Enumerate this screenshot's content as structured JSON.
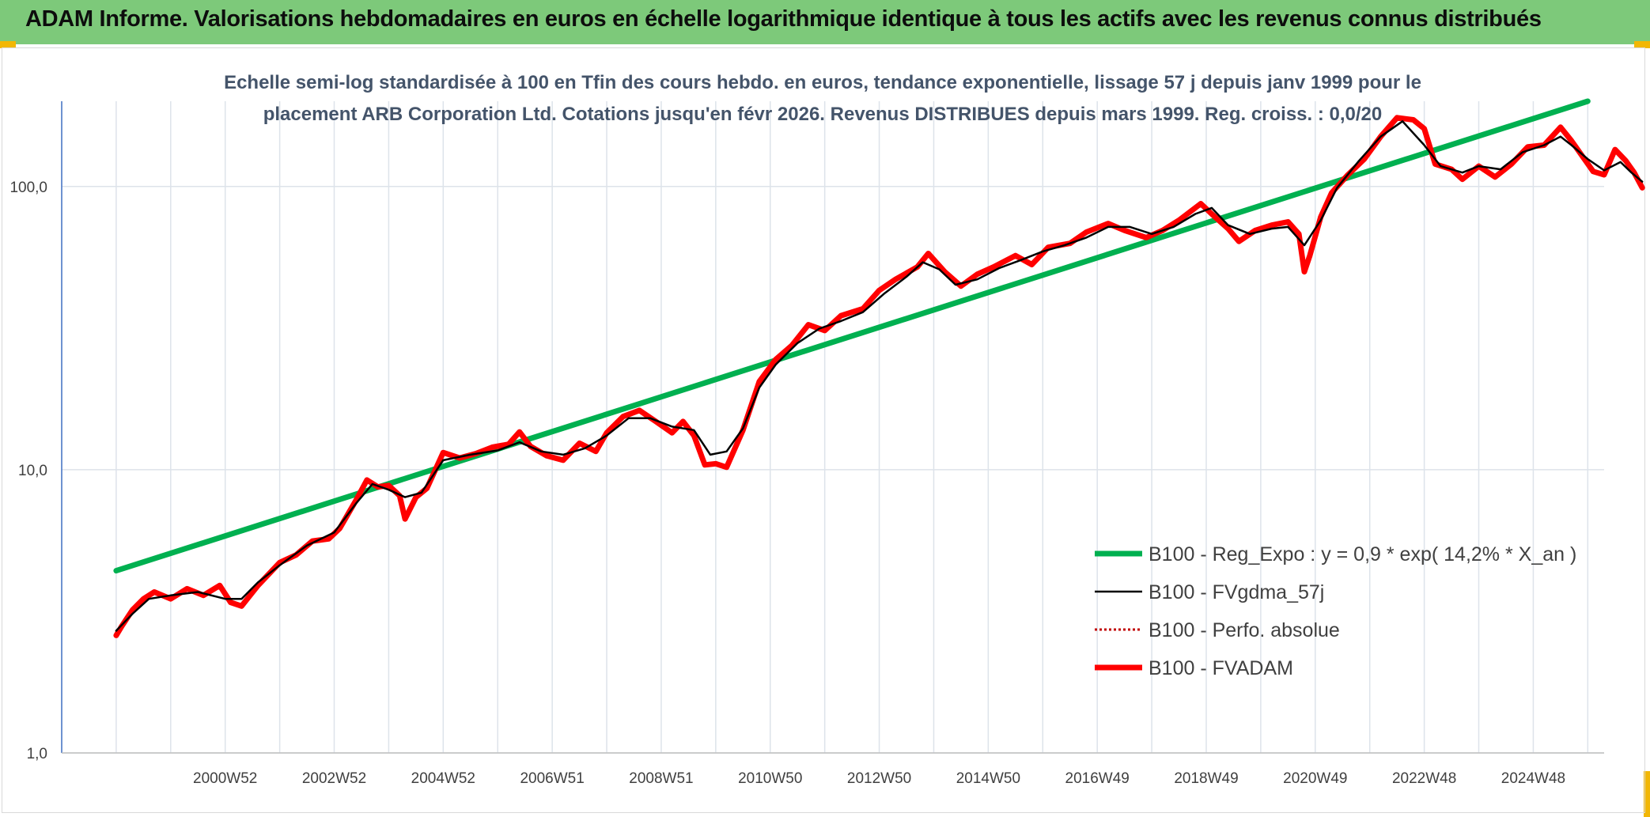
{
  "header": {
    "title": "ADAM Informe. Valorisations hebdomadaires en euros en échelle logarithmique identique à tous les actifs avec les revenus connus distribués"
  },
  "colors": {
    "header_bg": "#7dc97a",
    "regression": "#00b050",
    "smoothed": "#000000",
    "fvadam": "#ff0000",
    "perfo": "#c00000"
  },
  "chart_data": {
    "type": "line",
    "subtitle_lines": [
      "Echelle semi-log standardisée à 100 en Tfin des cours hebdo. en euros, tendance exponentielle, lissage 57 j depuis janv 1999 pour le",
      "placement ARB Corporation Ltd. Cotations jusqu'en févr 2026. Revenus DISTRIBUES depuis mars 1999. Reg. croiss. : 0,0/20"
    ],
    "y_scale": "log",
    "ylim": [
      1,
      200
    ],
    "y_ticks": [
      {
        "value": 1,
        "label": "1,0"
      },
      {
        "value": 10,
        "label": "10,0"
      },
      {
        "value": 100,
        "label": "100,0"
      }
    ],
    "xlim": [
      1998.0,
      2026.3
    ],
    "x_ticks": [
      {
        "value": 2001.0,
        "label": "2000W52"
      },
      {
        "value": 2003.0,
        "label": "2002W52"
      },
      {
        "value": 2005.0,
        "label": "2004W52"
      },
      {
        "value": 2007.0,
        "label": "2006W51"
      },
      {
        "value": 2009.0,
        "label": "2008W51"
      },
      {
        "value": 2011.0,
        "label": "2010W50"
      },
      {
        "value": 2013.0,
        "label": "2012W50"
      },
      {
        "value": 2015.0,
        "label": "2014W50"
      },
      {
        "value": 2017.0,
        "label": "2016W49"
      },
      {
        "value": 2019.0,
        "label": "2018W49"
      },
      {
        "value": 2021.0,
        "label": "2020W49"
      },
      {
        "value": 2023.0,
        "label": "2022W48"
      },
      {
        "value": 2025.0,
        "label": "2024W48"
      }
    ],
    "grid": true,
    "legend_position": "bottom-right",
    "series": [
      {
        "name": "B100 - Reg_Expo : y = 0,9 * exp( 14,2% *  X_an )",
        "color": "#00b050",
        "style": "solid-thick",
        "points": [
          [
            1999.0,
            4.4
          ],
          [
            2026.0,
            200
          ]
        ]
      },
      {
        "name": "B100 - FVgdma_57j",
        "color": "#000000",
        "style": "solid-thin",
        "points": [
          [
            1999.0,
            2.7
          ],
          [
            1999.3,
            3.1
          ],
          [
            1999.6,
            3.5
          ],
          [
            2000.0,
            3.6
          ],
          [
            2000.5,
            3.7
          ],
          [
            2001.0,
            3.5
          ],
          [
            2001.3,
            3.5
          ],
          [
            2001.6,
            4.0
          ],
          [
            2002.0,
            4.6
          ],
          [
            2002.5,
            5.4
          ],
          [
            2003.0,
            6.0
          ],
          [
            2003.4,
            7.6
          ],
          [
            2003.7,
            8.9
          ],
          [
            2004.0,
            8.5
          ],
          [
            2004.3,
            8.0
          ],
          [
            2004.6,
            8.3
          ],
          [
            2005.0,
            10.8
          ],
          [
            2005.5,
            11.3
          ],
          [
            2006.0,
            11.7
          ],
          [
            2006.4,
            12.5
          ],
          [
            2006.8,
            11.6
          ],
          [
            2007.2,
            11.3
          ],
          [
            2007.6,
            11.9
          ],
          [
            2008.0,
            13.2
          ],
          [
            2008.4,
            15.2
          ],
          [
            2008.8,
            15.2
          ],
          [
            2009.2,
            14.2
          ],
          [
            2009.6,
            13.8
          ],
          [
            2009.9,
            11.3
          ],
          [
            2010.2,
            11.6
          ],
          [
            2010.5,
            14.0
          ],
          [
            2010.8,
            19.5
          ],
          [
            2011.1,
            23.5
          ],
          [
            2011.5,
            28.0
          ],
          [
            2011.9,
            31.5
          ],
          [
            2012.3,
            33.5
          ],
          [
            2012.7,
            36.0
          ],
          [
            2013.1,
            42.0
          ],
          [
            2013.5,
            48.0
          ],
          [
            2013.8,
            54.0
          ],
          [
            2014.1,
            51.0
          ],
          [
            2014.4,
            45.0
          ],
          [
            2014.8,
            47.0
          ],
          [
            2015.2,
            51.5
          ],
          [
            2015.6,
            55.0
          ],
          [
            2016.0,
            59.0
          ],
          [
            2016.4,
            62.0
          ],
          [
            2016.8,
            66.0
          ],
          [
            2017.2,
            72.0
          ],
          [
            2017.6,
            72.0
          ],
          [
            2018.0,
            68.0
          ],
          [
            2018.4,
            72.0
          ],
          [
            2018.8,
            80.0
          ],
          [
            2019.1,
            84.0
          ],
          [
            2019.4,
            73.0
          ],
          [
            2019.8,
            68.0
          ],
          [
            2020.2,
            71.0
          ],
          [
            2020.5,
            72.0
          ],
          [
            2020.8,
            62.0
          ],
          [
            2021.1,
            76.0
          ],
          [
            2021.4,
            99.0
          ],
          [
            2021.8,
            123.0
          ],
          [
            2022.2,
            150.0
          ],
          [
            2022.6,
            170.0
          ],
          [
            2023.0,
            140.0
          ],
          [
            2023.3,
            118.0
          ],
          [
            2023.7,
            112.0
          ],
          [
            2024.0,
            118.0
          ],
          [
            2024.4,
            115.0
          ],
          [
            2024.8,
            132.0
          ],
          [
            2025.2,
            140.0
          ],
          [
            2025.5,
            150.0
          ],
          [
            2025.7,
            140.0
          ],
          [
            2026.0,
            125.0
          ],
          [
            2026.3,
            114.0
          ],
          [
            2026.6,
            122.0
          ],
          [
            2026.8,
            112.0
          ],
          [
            2027.0,
            104.0
          ]
        ]
      },
      {
        "name": "B100 - Perfo. absolue",
        "color": "#c00000",
        "style": "dotted",
        "points": []
      },
      {
        "name": "B100 - FVADAM",
        "color": "#ff0000",
        "style": "solid-thick",
        "points": [
          [
            1999.0,
            2.6
          ],
          [
            1999.1,
            2.8
          ],
          [
            1999.3,
            3.2
          ],
          [
            1999.5,
            3.5
          ],
          [
            1999.7,
            3.7
          ],
          [
            2000.0,
            3.5
          ],
          [
            2000.3,
            3.8
          ],
          [
            2000.6,
            3.6
          ],
          [
            2000.9,
            3.9
          ],
          [
            2001.1,
            3.4
          ],
          [
            2001.3,
            3.3
          ],
          [
            2001.6,
            3.9
          ],
          [
            2002.0,
            4.7
          ],
          [
            2002.3,
            5.0
          ],
          [
            2002.6,
            5.6
          ],
          [
            2002.9,
            5.7
          ],
          [
            2003.1,
            6.2
          ],
          [
            2003.4,
            7.8
          ],
          [
            2003.6,
            9.2
          ],
          [
            2003.8,
            8.7
          ],
          [
            2004.0,
            8.8
          ],
          [
            2004.2,
            8.1
          ],
          [
            2004.3,
            6.7
          ],
          [
            2004.5,
            8.0
          ],
          [
            2004.7,
            8.6
          ],
          [
            2005.0,
            11.5
          ],
          [
            2005.3,
            11.0
          ],
          [
            2005.6,
            11.4
          ],
          [
            2005.9,
            12.0
          ],
          [
            2006.2,
            12.3
          ],
          [
            2006.4,
            13.6
          ],
          [
            2006.6,
            12.1
          ],
          [
            2006.9,
            11.2
          ],
          [
            2007.2,
            10.8
          ],
          [
            2007.5,
            12.4
          ],
          [
            2007.8,
            11.6
          ],
          [
            2008.0,
            13.5
          ],
          [
            2008.3,
            15.4
          ],
          [
            2008.6,
            16.2
          ],
          [
            2008.9,
            14.8
          ],
          [
            2009.2,
            13.5
          ],
          [
            2009.4,
            14.8
          ],
          [
            2009.6,
            13.2
          ],
          [
            2009.8,
            10.4
          ],
          [
            2010.0,
            10.5
          ],
          [
            2010.2,
            10.2
          ],
          [
            2010.5,
            13.8
          ],
          [
            2010.8,
            20.5
          ],
          [
            2011.1,
            24.5
          ],
          [
            2011.4,
            27.5
          ],
          [
            2011.7,
            32.5
          ],
          [
            2012.0,
            31.0
          ],
          [
            2012.3,
            35.0
          ],
          [
            2012.7,
            37.0
          ],
          [
            2013.0,
            43.0
          ],
          [
            2013.3,
            47.0
          ],
          [
            2013.7,
            52.0
          ],
          [
            2013.9,
            58.0
          ],
          [
            2014.2,
            50.0
          ],
          [
            2014.5,
            44.5
          ],
          [
            2014.8,
            49.0
          ],
          [
            2015.1,
            52.0
          ],
          [
            2015.5,
            57.0
          ],
          [
            2015.8,
            53.0
          ],
          [
            2016.1,
            61.0
          ],
          [
            2016.5,
            63.0
          ],
          [
            2016.8,
            69.0
          ],
          [
            2017.2,
            74.0
          ],
          [
            2017.5,
            70.0
          ],
          [
            2017.9,
            66.0
          ],
          [
            2018.2,
            70.0
          ],
          [
            2018.5,
            76.0
          ],
          [
            2018.9,
            87.0
          ],
          [
            2019.1,
            80.0
          ],
          [
            2019.4,
            71.0
          ],
          [
            2019.6,
            64.0
          ],
          [
            2019.9,
            70.0
          ],
          [
            2020.2,
            73.0
          ],
          [
            2020.5,
            75.0
          ],
          [
            2020.7,
            68.0
          ],
          [
            2020.8,
            50.0
          ],
          [
            2020.9,
            57.0
          ],
          [
            2021.1,
            78.0
          ],
          [
            2021.3,
            95.0
          ],
          [
            2021.6,
            110.0
          ],
          [
            2021.9,
            125.0
          ],
          [
            2022.2,
            150.0
          ],
          [
            2022.5,
            175.0
          ],
          [
            2022.8,
            172.0
          ],
          [
            2023.0,
            160.0
          ],
          [
            2023.2,
            120.0
          ],
          [
            2023.5,
            115.0
          ],
          [
            2023.7,
            106.0
          ],
          [
            2024.0,
            118.0
          ],
          [
            2024.3,
            108.0
          ],
          [
            2024.6,
            120.0
          ],
          [
            2024.9,
            138.0
          ],
          [
            2025.2,
            140.0
          ],
          [
            2025.5,
            162.0
          ],
          [
            2025.7,
            145.0
          ],
          [
            2025.9,
            128.0
          ],
          [
            2026.1,
            113.0
          ],
          [
            2026.3,
            110.0
          ],
          [
            2026.5,
            135.0
          ],
          [
            2026.7,
            123.0
          ],
          [
            2026.85,
            112.0
          ],
          [
            2027.0,
            99.0
          ]
        ]
      }
    ]
  }
}
